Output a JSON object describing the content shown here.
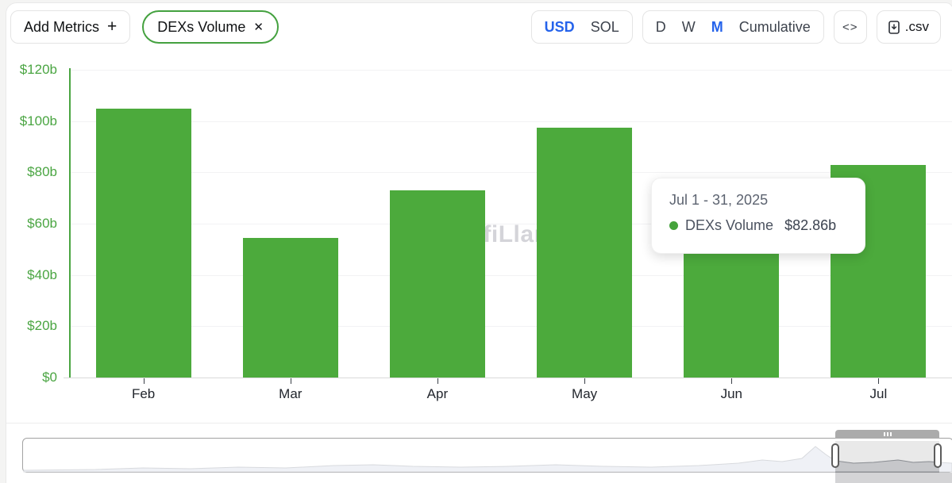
{
  "toolbar": {
    "add_metrics_label": "Add Metrics",
    "add_metrics_icon": "+",
    "metric_pill_label": "DEXs Volume",
    "metric_pill_close": "✕",
    "currency_options": [
      "USD",
      "SOL"
    ],
    "currency_active": "USD",
    "interval_options": [
      "D",
      "W",
      "M",
      "Cumulative"
    ],
    "interval_active": "M",
    "embed_icon": "<>",
    "csv_label": ".csv"
  },
  "chart_data": {
    "type": "bar",
    "title": "DEXs Volume",
    "categories": [
      "Feb",
      "Mar",
      "Apr",
      "May",
      "Jun",
      "Jul"
    ],
    "series": [
      {
        "name": "DEXs Volume",
        "values": [
          104.8,
          54.3,
          72.9,
          97.4,
          58.0,
          82.86
        ]
      }
    ],
    "unit": "USD billions",
    "ylim": [
      0,
      120
    ],
    "ytick_step": 20,
    "ytick_labels": [
      "$0",
      "$20b",
      "$40b",
      "$60b",
      "$80b",
      "$100b",
      "$120b"
    ],
    "grid": true,
    "legend_position": "none",
    "bar_color": "#4caa3c"
  },
  "tooltip": {
    "date_range": "Jul 1 - 31, 2025",
    "series_name": "DEXs Volume",
    "value": "$82.86b"
  },
  "watermark": "DefiLlama",
  "brush": {
    "selection_range": [
      "Jun",
      "Jul"
    ],
    "sparkline": [
      [
        30,
        2
      ],
      [
        120,
        3
      ],
      [
        180,
        5
      ],
      [
        240,
        4
      ],
      [
        300,
        6
      ],
      [
        360,
        5
      ],
      [
        420,
        8
      ],
      [
        470,
        9
      ],
      [
        520,
        7
      ],
      [
        580,
        6
      ],
      [
        640,
        7
      ],
      [
        700,
        9
      ],
      [
        760,
        7
      ],
      [
        820,
        6
      ],
      [
        880,
        8
      ],
      [
        930,
        11
      ],
      [
        960,
        15
      ],
      [
        985,
        13
      ],
      [
        1010,
        17
      ],
      [
        1027,
        32
      ],
      [
        1040,
        22
      ],
      [
        1052,
        14
      ],
      [
        1075,
        11
      ],
      [
        1100,
        12
      ],
      [
        1131,
        15
      ],
      [
        1150,
        12
      ],
      [
        1170,
        13
      ],
      [
        1183,
        12
      ],
      [
        1199,
        11
      ]
    ]
  },
  "colors": {
    "bar": "#4caa3c",
    "axis_green": "#4aa542",
    "accent_blue": "#2563eb",
    "pill_border": "#44a13f"
  }
}
